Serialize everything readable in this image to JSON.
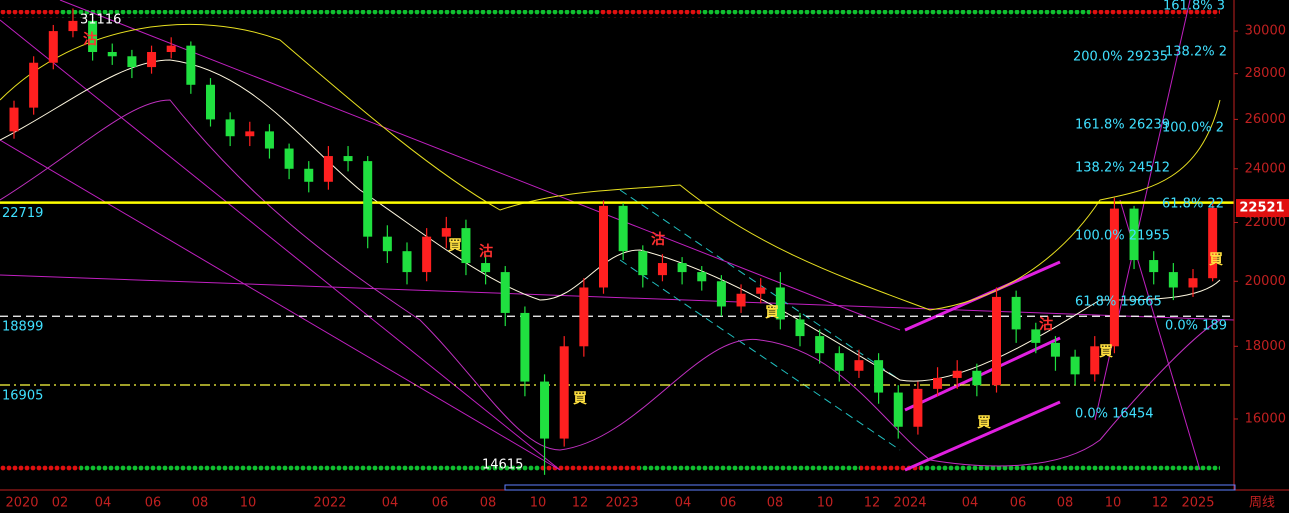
{
  "chart_data": {
    "type": "candlestick",
    "log_scale": true,
    "ylim": [
      14330,
      31550
    ],
    "yticks": [
      16000,
      18000,
      20000,
      22000,
      24000,
      26000,
      28000,
      30000
    ],
    "categories": [
      "2020",
      "02",
      "04",
      "06",
      "08",
      "10",
      "2022",
      "04",
      "06",
      "08",
      "10",
      "12",
      "2023",
      "04",
      "06",
      "08",
      "10",
      "12",
      "2024",
      "04",
      "06",
      "08",
      "10",
      "12",
      "2025"
    ],
    "period": "周线",
    "up_color": "#ff2020",
    "down_color": "#20e040",
    "open": [
      25500,
      26500,
      28500,
      30000,
      30500,
      29000,
      28800,
      28300,
      29000,
      29300,
      27500,
      26000,
      25300,
      25500,
      24800,
      24000,
      23500,
      24500,
      24300,
      21500,
      21000,
      20300,
      21500,
      21800,
      20600,
      20300,
      19000,
      17000,
      15500,
      18000,
      19800,
      22600,
      21000,
      20200,
      20600,
      20300,
      20000,
      19200,
      19600,
      19800,
      18800,
      18300,
      17800,
      17300,
      17600,
      16700,
      15800,
      16800,
      17100,
      17300,
      16900,
      19500,
      18500,
      18100,
      17700,
      17200,
      18000,
      22500,
      20700,
      20300,
      19800,
      20100
    ],
    "high": [
      26800,
      28800,
      30300,
      31116,
      30700,
      29400,
      29100,
      29300,
      29700,
      29500,
      27800,
      26300,
      25900,
      25800,
      25000,
      24300,
      24900,
      24900,
      24500,
      21900,
      21300,
      21800,
      22200,
      22100,
      20900,
      20500,
      19200,
      17200,
      18300,
      20100,
      22800,
      22700,
      21200,
      20900,
      20800,
      20500,
      20200,
      19900,
      20100,
      20300,
      19000,
      18500,
      18000,
      17900,
      17800,
      16900,
      17000,
      17400,
      17600,
      17500,
      19800,
      19700,
      18700,
      18300,
      17900,
      18300,
      22900,
      22600,
      21000,
      20600,
      20400,
      22800
    ],
    "low": [
      25200,
      26200,
      28200,
      29700,
      28600,
      28400,
      27800,
      28000,
      28700,
      27100,
      25700,
      24900,
      24900,
      24400,
      23600,
      23100,
      23200,
      23900,
      21100,
      20600,
      19900,
      20000,
      21100,
      20200,
      19900,
      18600,
      16600,
      14615,
      15300,
      17700,
      19600,
      20700,
      19800,
      20000,
      19900,
      19700,
      18900,
      19000,
      19300,
      18500,
      18000,
      17500,
      17000,
      17100,
      16400,
      15500,
      15600,
      16600,
      16800,
      16600,
      16700,
      18100,
      17800,
      17300,
      16900,
      17000,
      17800,
      20400,
      19900,
      19400,
      19500,
      20000
    ],
    "close": [
      26500,
      28500,
      30000,
      30500,
      29000,
      28800,
      28300,
      29000,
      29300,
      27500,
      26000,
      25300,
      25500,
      24800,
      24000,
      23500,
      24500,
      24300,
      21500,
      21000,
      20300,
      21500,
      21800,
      20600,
      20300,
      19000,
      17000,
      15500,
      18000,
      19800,
      22600,
      21000,
      20200,
      20600,
      20300,
      20000,
      19200,
      19600,
      19800,
      18800,
      18300,
      17800,
      17300,
      17600,
      16700,
      15800,
      16800,
      17100,
      17300,
      16900,
      19500,
      18500,
      18100,
      17700,
      17200,
      18000,
      22500,
      20700,
      20300,
      19800,
      20100,
      22521
    ],
    "last_price": 22521,
    "extremes": [
      {
        "value": 31116,
        "label": "31116"
      },
      {
        "value": 14615,
        "label": "14615"
      }
    ],
    "hlines": [
      {
        "value": 22719,
        "label": "22719",
        "color": "#ffff00",
        "style": "solid"
      },
      {
        "value": 18899,
        "label": "18899",
        "color": "#ffffff",
        "style": "dashed"
      },
      {
        "value": 16905,
        "label": "16905",
        "color": "#ffff40",
        "style": "dashdot"
      }
    ],
    "annotations": [
      "161.8% 3",
      "200.0% 29235",
      "138.2% 2",
      "161.8% 26239",
      "100.0% 2",
      "138.2% 24512",
      "61.8% 22",
      "100.0% 21955",
      "61.8% 19665",
      "0.0% 189",
      "0.0% 16454"
    ],
    "signals": [
      "沽",
      "買",
      "沽",
      "買",
      "沽",
      "買",
      "買",
      "沽",
      "買",
      "買"
    ]
  }
}
